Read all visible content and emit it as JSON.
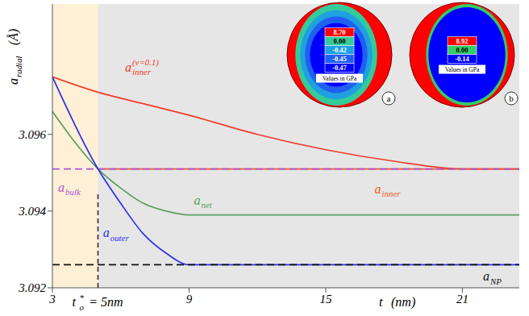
{
  "chart_data": {
    "type": "line",
    "xlabel": {
      "text": "t",
      "after": " (nm)"
    },
    "ylabel": {
      "text": "a",
      "sub": "radial",
      "after": " (Å)"
    },
    "xlim": [
      3,
      23.5
    ],
    "xticks": [
      3,
      9,
      15,
      21
    ],
    "ylim": [
      3.092,
      3.0994
    ],
    "yticks": [
      3.092,
      3.094,
      3.096
    ],
    "grid": false,
    "regions": [
      {
        "x": [
          3,
          5
        ],
        "color": "#fdf0d6"
      },
      {
        "x": [
          5,
          23.5
        ],
        "color": "#e6e6e6"
      }
    ],
    "marker_line": {
      "x": 5,
      "y": [
        3.092,
        3.0945
      ],
      "label": {
        "text": "t",
        "sup": "*",
        "sub": "o",
        "after": " = 5nm"
      }
    },
    "series": [
      {
        "name": "a",
        "sub": "inner",
        "sup": "(ν=0.1)",
        "color": "#ee3b2b",
        "line_style": "solid",
        "x": [
          3,
          5,
          7,
          9,
          12,
          15,
          18,
          21,
          23.5
        ],
        "values": [
          3.0975,
          3.0971,
          3.0968,
          3.0965,
          3.096,
          3.0956,
          3.0953,
          3.0951,
          3.0951
        ]
      },
      {
        "name": "a",
        "sub": "inner",
        "color": "#ee5a1e",
        "line_style": "solid",
        "x": [
          5,
          23.5
        ],
        "values": [
          3.0951,
          3.0951
        ]
      },
      {
        "name": "a",
        "sub": "bulk",
        "color": "#b050d8",
        "line_style": "dashed",
        "x": [
          3,
          23.5
        ],
        "values": [
          3.0951,
          3.0951
        ]
      },
      {
        "name": "a",
        "sub": "net",
        "color": "#5d9e5d",
        "line_style": "solid",
        "x": [
          3,
          5,
          6,
          7,
          8,
          9,
          23.5
        ],
        "values": [
          3.0966,
          3.0951,
          3.0946,
          3.0942,
          3.094,
          3.0939,
          3.0939
        ]
      },
      {
        "name": "a",
        "sub": "outer",
        "color": "#2f2fef",
        "line_style": "solid",
        "x": [
          3,
          5,
          6,
          7,
          8,
          9,
          23.5
        ],
        "values": [
          3.0975,
          3.0951,
          3.0942,
          3.0934,
          3.0929,
          3.0926,
          3.0926
        ]
      },
      {
        "name": "a",
        "sub": "NP",
        "color": "#111111",
        "line_style": "dashed",
        "x": [
          3,
          23.5
        ],
        "values": [
          3.0926,
          3.0926
        ]
      }
    ],
    "insets": [
      {
        "label": "a",
        "title": "Values in GPa",
        "values": [
          8.7,
          0,
          -0.42,
          -0.45,
          -0.47
        ],
        "value_labels": [
          "8.70",
          "0.00",
          "-0.42",
          "-0.45",
          "-0.47"
        ],
        "colors": [
          "#ff0000",
          "#33cc99",
          "#1fa0e0",
          "#2060f0",
          "#0000ff"
        ]
      },
      {
        "label": "b",
        "title": "Values in GPa",
        "values": [
          8.92,
          0,
          -0.14
        ],
        "value_labels": [
          "8.92",
          "0.00",
          "-0.14"
        ],
        "colors": [
          "#ff0000",
          "#33cc66",
          "#0000ff"
        ]
      }
    ]
  }
}
